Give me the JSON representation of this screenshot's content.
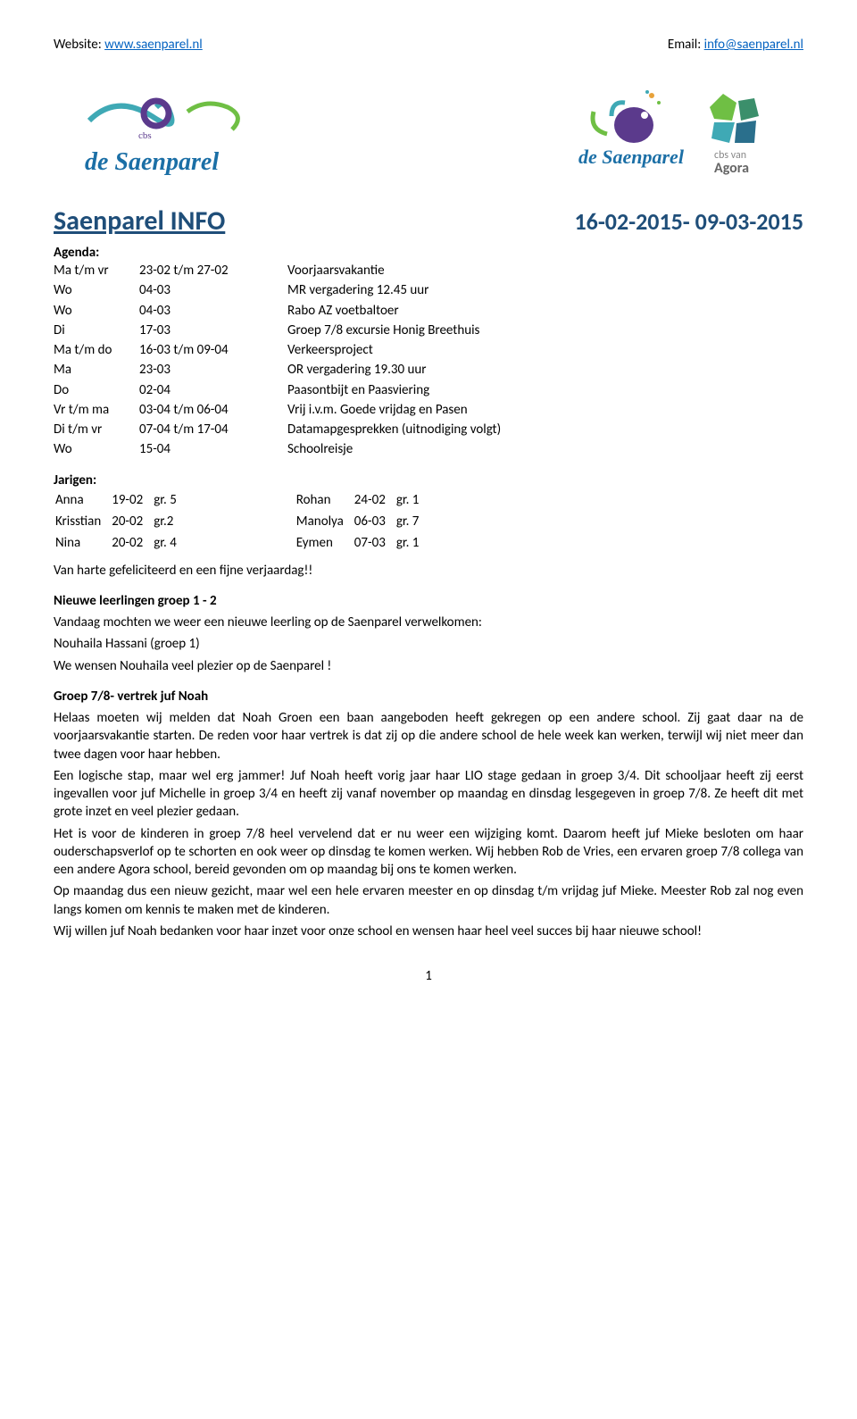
{
  "header": {
    "website_label": "Website:",
    "website_url": "www.saenparel.nl",
    "email_label": "Email:",
    "email_url": "info@saenparel.nl"
  },
  "title_left": "Saenparel  INFO",
  "title_right": "16-02-2015- 09-03-2015",
  "agenda_label": "Agenda:",
  "agenda": [
    {
      "c1": "Ma t/m vr",
      "c2": "23-02 t/m 27-02",
      "c3": "Voorjaarsvakantie"
    },
    {
      "c1": "Wo",
      "c2": "04-03",
      "c3": "MR vergadering 12.45 uur"
    },
    {
      "c1": "Wo",
      "c2": "04-03",
      "c3": "Rabo AZ voetbaltoer"
    },
    {
      "c1": "Di",
      "c2": "17-03",
      "c3": "Groep 7/8 excursie Honig Breethuis"
    },
    {
      "c1": "Ma t/m do",
      "c2": "16-03 t/m 09-04",
      "c3": "Verkeersproject"
    },
    {
      "c1": "Ma",
      "c2": "23-03",
      "c3": "OR vergadering 19.30 uur"
    },
    {
      "c1": "Do",
      "c2": "02-04",
      "c3": "Paasontbijt en Paasviering"
    },
    {
      "c1": "Vr t/m ma",
      "c2": "03-04 t/m 06-04",
      "c3": "Vrij i.v.m. Goede vrijdag en Pasen"
    },
    {
      "c1": "Di t/m vr",
      "c2": "07-04 t/m 17-04",
      "c3": "Datamapgesprekken (uitnodiging volgt)"
    },
    {
      "c1": "Wo",
      "c2": "15-04",
      "c3": "Schoolreisje"
    }
  ],
  "jarigen_label": "Jarigen:",
  "jarigen_left": [
    {
      "name": "Anna",
      "date": "19-02",
      "group": "gr. 5"
    },
    {
      "name": "Krisstian",
      "date": "20-02",
      "group": "gr.2"
    },
    {
      "name": "Nina",
      "date": "20-02",
      "group": "gr. 4"
    }
  ],
  "jarigen_right": [
    {
      "name": "Rohan",
      "date": "24-02",
      "group": "gr. 1"
    },
    {
      "name": "Manolya",
      "date": "06-03",
      "group": "gr. 7"
    },
    {
      "name": "Eymen",
      "date": "07-03",
      "group": "gr. 1"
    }
  ],
  "congrats": "Van harte gefeliciteerd en een fijne verjaardag!!",
  "sec1": {
    "title": "Nieuwe leerlingen groep 1 - 2",
    "l1": "Vandaag mochten we weer een nieuwe leerling op de Saenparel verwelkomen:",
    "l2": "Nouhaila Hassani (groep 1)",
    "l3": "We wensen Nouhaila veel plezier op de Saenparel !"
  },
  "sec2": {
    "title": "Groep 7/8- vertrek juf Noah",
    "p1": "Helaas moeten wij melden dat Noah Groen een baan aangeboden heeft gekregen op een andere school. Zij gaat daar na de voorjaarsvakantie starten. De reden voor haar vertrek is dat zij op die andere school de hele week kan werken, terwijl wij niet meer dan twee dagen voor haar hebben.",
    "p2": "Een logische stap, maar wel erg jammer! Juf Noah heeft vorig jaar haar LIO stage gedaan in groep 3/4. Dit schooljaar heeft zij eerst ingevallen voor juf Michelle in groep 3/4 en heeft zij vanaf november op maandag en dinsdag lesgegeven in groep 7/8. Ze heeft dit met grote inzet en veel plezier gedaan.",
    "p3": "Het is voor de kinderen in groep 7/8 heel vervelend dat er nu weer een wijziging komt. Daarom heeft juf Mieke besloten om haar ouderschapsverlof op te schorten en ook weer op dinsdag te komen werken. Wij hebben Rob de Vries, een ervaren groep 7/8 collega van een andere Agora school, bereid gevonden om op maandag bij ons te komen werken.",
    "p4": "Op maandag dus een nieuw gezicht, maar wel een hele ervaren meester en op dinsdag t/m vrijdag juf Mieke. Meester Rob zal nog even langs komen om kennis te maken met de kinderen.",
    "p5": "Wij willen juf Noah bedanken voor haar inzet voor onze school en wensen haar heel veel succes bij haar nieuwe school!"
  },
  "page_number": "1",
  "logo_left_text": "de Saenparel",
  "logo_left_sub": "cbs",
  "logo_right_text": "de Saenparel",
  "logo_right_sub": "cbs van Agora"
}
